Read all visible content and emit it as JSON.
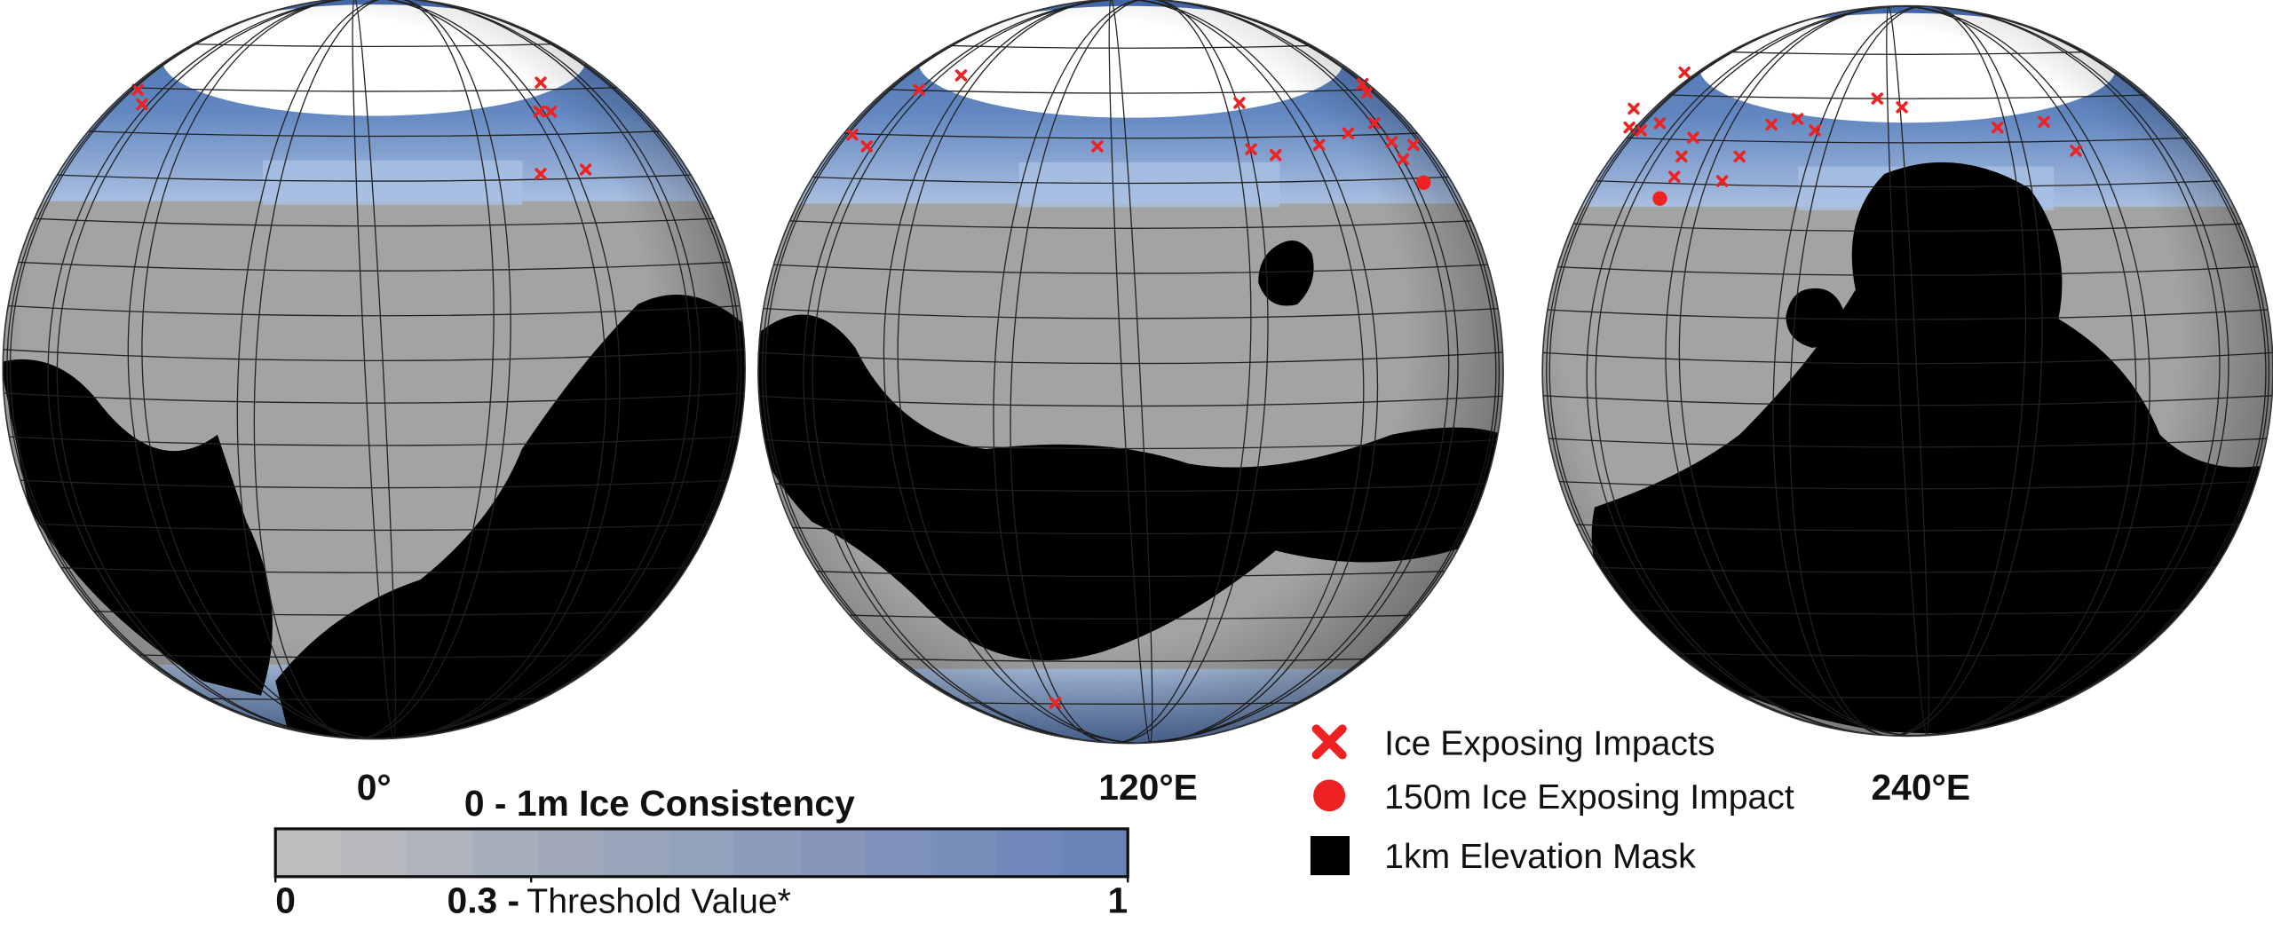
{
  "globes": [
    {
      "label": "0°"
    },
    {
      "label": "120°E"
    },
    {
      "label": "240°E"
    }
  ],
  "colorbar": {
    "title": "0 - 1m Ice Consistency",
    "range": [
      0,
      1
    ],
    "ticks": [
      0,
      {
        "value": 0.3,
        "label": "0.3 -"
      },
      1
    ],
    "threshold_label": "Threshold Value*"
  },
  "legend": [
    {
      "label": "Ice Exposing Impacts"
    },
    {
      "label": "150m Ice Exposing Impact"
    },
    {
      "label": "1km Elevation Mask"
    }
  ]
}
